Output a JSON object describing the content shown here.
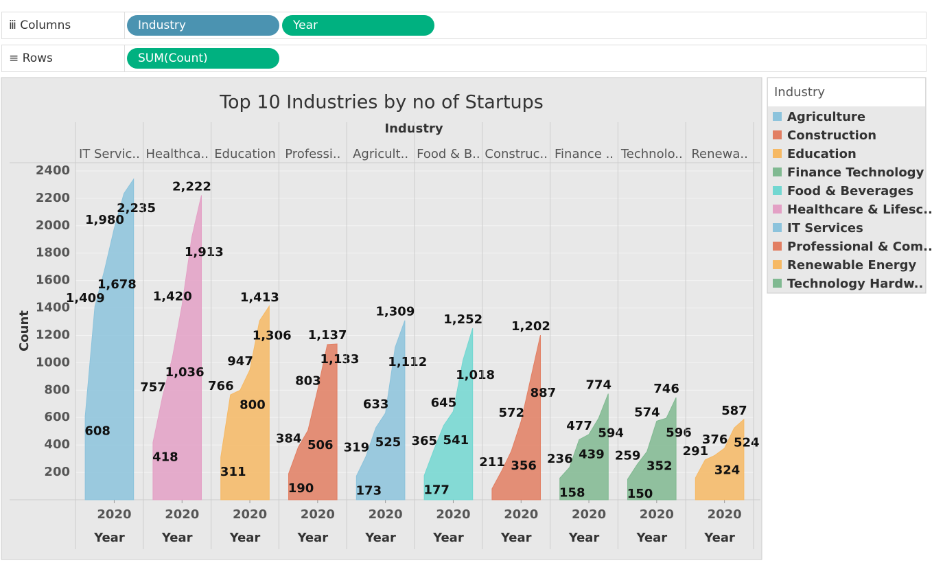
{
  "shelf": {
    "columns_label": "Columns",
    "columns_pills": [
      "Industry",
      "Year"
    ],
    "rows_label": "Rows",
    "rows_pills": [
      "SUM(Count)"
    ]
  },
  "legend": {
    "title": "Industry",
    "items": [
      {
        "name": "Agriculture",
        "color": "#8cc3dc"
      },
      {
        "name": "Construction",
        "color": "#e27e62"
      },
      {
        "name": "Education",
        "color": "#f6b964"
      },
      {
        "name": "Finance Technology",
        "color": "#80b991"
      },
      {
        "name": "Food & Beverages",
        "color": "#72d7d1"
      },
      {
        "name": "Healthcare & Lifesc..",
        "color": "#e3a0c5"
      },
      {
        "name": "IT Services",
        "color": "#8cc3dc"
      },
      {
        "name": "Professional & Com..",
        "color": "#e27e62"
      },
      {
        "name": "Renewable Energy",
        "color": "#f6b964"
      },
      {
        "name": "Technology Hardw..",
        "color": "#80b991"
      }
    ]
  },
  "chart_data": {
    "type": "area",
    "title": "Top 10 Industries by no of Startups",
    "column_header": "Industry",
    "y_label": "Count",
    "x_label": "Year",
    "x": [
      2017,
      2018,
      2019,
      2020,
      2021,
      2022
    ],
    "xlim": [
      2016,
      2023
    ],
    "xticks": [
      2020
    ],
    "ylim": [
      0,
      2460
    ],
    "yticks": [
      200,
      400,
      600,
      800,
      1000,
      1200,
      1400,
      1600,
      1800,
      2000,
      2200,
      2400
    ],
    "grid": true,
    "series": [
      {
        "header": "IT Servic..",
        "color": "#8cc3dc",
        "values": [
          608,
          1409,
          1678,
          1980,
          2235,
          2340
        ],
        "value_labels": [
          "608",
          "1,409",
          "1,678",
          "1,980",
          "2,235",
          null
        ]
      },
      {
        "header": "Healthca..",
        "color": "#e3a0c5",
        "values": [
          418,
          757,
          1036,
          1420,
          1913,
          2222
        ],
        "value_labels": [
          "418",
          "757",
          "1,036",
          "1,420",
          "1,913",
          "2,222"
        ]
      },
      {
        "header": "Education",
        "color": "#f6b964",
        "values": [
          311,
          766,
          800,
          947,
          1306,
          1413
        ],
        "value_labels": [
          "311",
          "766",
          "800",
          "947",
          "1,306",
          "1,413"
        ]
      },
      {
        "header": "Professi..",
        "color": "#e27e62",
        "values": [
          190,
          384,
          506,
          803,
          1133,
          1137
        ],
        "value_labels": [
          "190",
          "384",
          "506",
          "803",
          "1,133",
          "1,137"
        ]
      },
      {
        "header": "Agricult..",
        "color": "#8cc3dc",
        "values": [
          173,
          319,
          525,
          633,
          1112,
          1309
        ],
        "value_labels": [
          "173",
          "319",
          "525",
          "633",
          "1,112",
          "1,309"
        ]
      },
      {
        "header": "Food & B..",
        "color": "#72d7d1",
        "values": [
          177,
          365,
          541,
          645,
          1018,
          1252
        ],
        "value_labels": [
          "177",
          "365",
          "541",
          "645",
          "1,018",
          "1,252"
        ]
      },
      {
        "header": "Construc..",
        "color": "#e27e62",
        "values": [
          80,
          211,
          356,
          572,
          887,
          1202
        ],
        "value_labels": [
          null,
          "211",
          "356",
          "572",
          "887",
          "1,202"
        ]
      },
      {
        "header": "Finance ..",
        "color": "#80b991",
        "values": [
          158,
          236,
          439,
          477,
          594,
          774
        ],
        "value_labels": [
          "158",
          "236",
          "439",
          "477",
          "594",
          "774"
        ]
      },
      {
        "header": "Technolo..",
        "color": "#80b991",
        "values": [
          150,
          259,
          352,
          574,
          596,
          746
        ],
        "value_labels": [
          "150",
          "259",
          "352",
          "574",
          "596",
          "746"
        ]
      },
      {
        "header": "Renewa..",
        "color": "#f6b964",
        "values": [
          160,
          291,
          324,
          376,
          524,
          587
        ],
        "value_labels": [
          null,
          "291",
          "324",
          "376",
          "524",
          "587"
        ]
      }
    ]
  }
}
